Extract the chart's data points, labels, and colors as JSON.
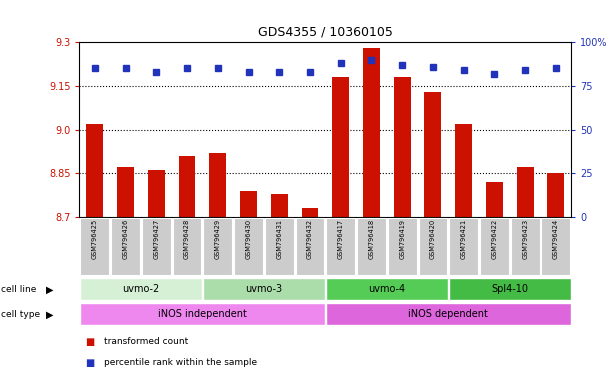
{
  "title": "GDS4355 / 10360105",
  "samples": [
    "GSM796425",
    "GSM796426",
    "GSM796427",
    "GSM796428",
    "GSM796429",
    "GSM796430",
    "GSM796431",
    "GSM796432",
    "GSM796417",
    "GSM796418",
    "GSM796419",
    "GSM796420",
    "GSM796421",
    "GSM796422",
    "GSM796423",
    "GSM796424"
  ],
  "bar_values": [
    9.02,
    8.87,
    8.86,
    8.91,
    8.92,
    8.79,
    8.78,
    8.73,
    9.18,
    9.28,
    9.18,
    9.13,
    9.02,
    8.82,
    8.87,
    8.85
  ],
  "dot_values": [
    85,
    85,
    83,
    85,
    85,
    83,
    83,
    83,
    88,
    90,
    87,
    86,
    84,
    82,
    84,
    85
  ],
  "bar_color": "#cc1100",
  "dot_color": "#2233bb",
  "ylim_left": [
    8.7,
    9.3
  ],
  "ylim_right": [
    0,
    100
  ],
  "yticks_left": [
    8.7,
    8.85,
    9.0,
    9.15,
    9.3
  ],
  "yticks_right": [
    0,
    25,
    50,
    75,
    100
  ],
  "ytick_labels_right": [
    "0",
    "25",
    "50",
    "75",
    "100%"
  ],
  "hlines": [
    8.85,
    9.0,
    9.15
  ],
  "cell_line_groups": [
    {
      "label": "uvmo-2",
      "start": 0,
      "end": 4,
      "color": "#d6f0d6"
    },
    {
      "label": "uvmo-3",
      "start": 4,
      "end": 8,
      "color": "#aaddaa"
    },
    {
      "label": "uvmo-4",
      "start": 8,
      "end": 12,
      "color": "#55cc55"
    },
    {
      "label": "Spl4-10",
      "start": 12,
      "end": 16,
      "color": "#44bb44"
    }
  ],
  "cell_type_groups": [
    {
      "label": "iNOS independent",
      "start": 0,
      "end": 8,
      "color": "#ee88ee"
    },
    {
      "label": "iNOS dependent",
      "start": 8,
      "end": 16,
      "color": "#dd66dd"
    }
  ],
  "legend_items": [
    {
      "color": "#cc1100",
      "label": "transformed count"
    },
    {
      "color": "#2233bb",
      "label": "percentile rank within the sample"
    }
  ],
  "bar_width": 0.55,
  "sample_box_color": "#cccccc",
  "fig_width": 6.11,
  "fig_height": 3.84,
  "dpi": 100
}
